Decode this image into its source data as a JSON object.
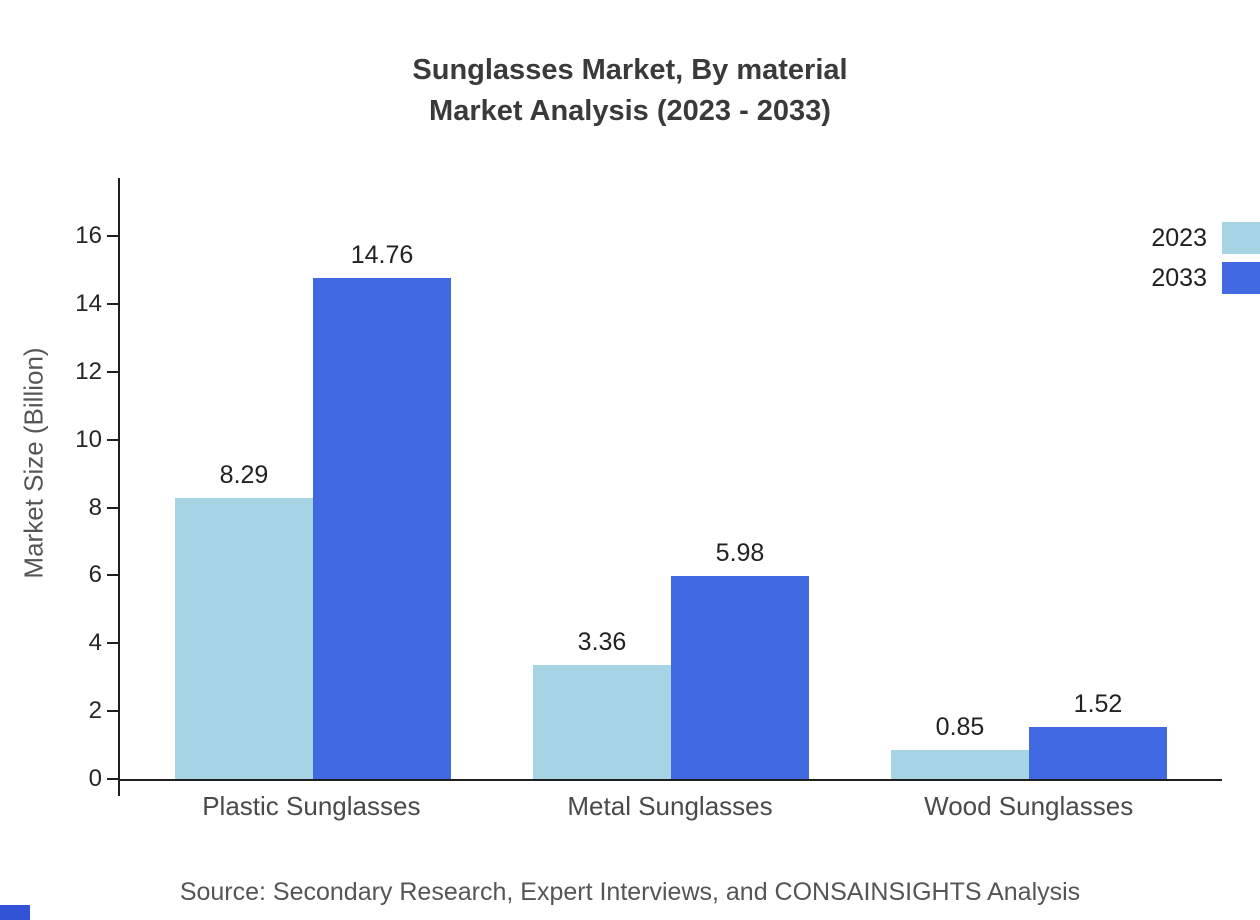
{
  "title": {
    "line1": "Sunglasses Market, By material",
    "line2": "Market Analysis (2023 - 2033)"
  },
  "chart_data": {
    "type": "bar",
    "title": "Sunglasses Market, By material — Market Analysis (2023 - 2033)",
    "categories": [
      "Plastic Sunglasses",
      "Metal Sunglasses",
      "Wood Sunglasses"
    ],
    "series": [
      {
        "name": "2023",
        "color": "#a6d4e4",
        "values": [
          8.29,
          3.36,
          0.85
        ]
      },
      {
        "name": "2033",
        "color": "#4169e1",
        "values": [
          14.76,
          5.98,
          1.52
        ]
      }
    ],
    "xlabel": "",
    "ylabel": "Market Size (Billion)",
    "ylim": [
      0,
      16
    ],
    "ytick_step": 2,
    "grid": false,
    "legend_position": "top-right",
    "value_labels": true
  },
  "source": "Source: Secondary Research, Expert Interviews, and CONSAINSIGHTS Analysis",
  "colors": {
    "axis": "#1f1f1f",
    "title_text": "#3a3a3a",
    "tick_text": "#262626",
    "category_text": "#4a4a4a",
    "source_text": "#555555",
    "corner_mark": "#3353d6"
  }
}
